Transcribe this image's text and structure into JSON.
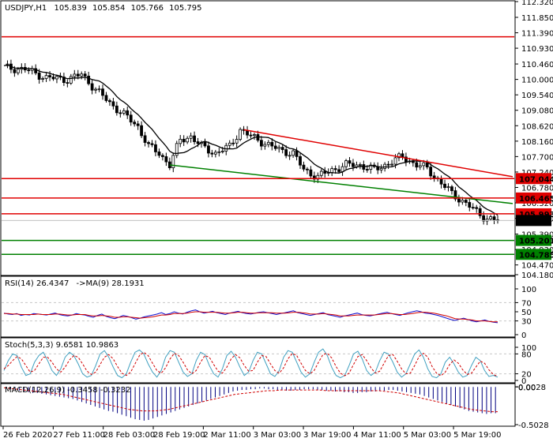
{
  "chart_data": [
    {
      "id": "price",
      "type": "candlestick",
      "title": "USDJPY,H1",
      "ohlc": [
        "105.839",
        "105.854",
        "105.766",
        "105.795"
      ],
      "ylim": [
        104.18,
        112.32
      ],
      "ytick_labels": [
        "112.320",
        "111.850",
        "111.390",
        "110.930",
        "110.460",
        "110.000",
        "109.540",
        "109.080",
        "108.620",
        "108.160",
        "107.700",
        "107.240",
        "106.780",
        "106.320",
        "105.860",
        "105.390",
        "104.930",
        "104.470",
        "104.180"
      ],
      "levels": [
        {
          "label": "111.270",
          "value": 111.27,
          "color": "#e00000",
          "tag": false
        },
        {
          "label": "107.044",
          "value": 107.044,
          "color": "#e00000",
          "tag": true
        },
        {
          "label": "106.465",
          "value": 106.465,
          "color": "#e00000",
          "tag": true
        },
        {
          "label": "105.993",
          "value": 105.993,
          "color": "#e00000",
          "tag": true
        },
        {
          "label": "105.201",
          "value": 105.201,
          "color": "#008000",
          "tag": true
        },
        {
          "label": "104.785",
          "value": 104.785,
          "color": "#008000",
          "tag": true
        }
      ],
      "current_price_label": "105.795",
      "current_price": 105.795,
      "x_labels": [
        "26 Feb 2020",
        "27 Feb 11:00",
        "28 Feb 03:00",
        "28 Feb 19:00",
        "2 Mar 11:00",
        "3 Mar 03:00",
        "3 Mar 19:00",
        "4 Mar 11:00",
        "5 Mar 03:00",
        "5 Mar 19:00"
      ],
      "bar_count": 140,
      "trendlines": [
        {
          "color": "#e00000",
          "from_bar": 68,
          "from_value": 108.5,
          "to_bar": 140,
          "to_value": 107.1
        },
        {
          "color": "#008000",
          "from_bar": 47,
          "from_value": 107.45,
          "to_bar": 140,
          "to_value": 106.3
        }
      ],
      "ma_color": "#000000",
      "series_anchor_points": [
        [
          0,
          110.35
        ],
        [
          6,
          110.3
        ],
        [
          12,
          110.05
        ],
        [
          18,
          110.0
        ],
        [
          22,
          110.15
        ],
        [
          26,
          109.7
        ],
        [
          30,
          109.3
        ],
        [
          34,
          108.95
        ],
        [
          38,
          108.6
        ],
        [
          41,
          108.0
        ],
        [
          44,
          107.8
        ],
        [
          47,
          107.45
        ],
        [
          50,
          108.2
        ],
        [
          53,
          108.3
        ],
        [
          56,
          108.0
        ],
        [
          60,
          107.8
        ],
        [
          64,
          108.0
        ],
        [
          67,
          108.5
        ],
        [
          70,
          108.3
        ],
        [
          74,
          108.1
        ],
        [
          78,
          107.9
        ],
        [
          82,
          107.8
        ],
        [
          85,
          107.3
        ],
        [
          89,
          107.1
        ],
        [
          93,
          107.3
        ],
        [
          97,
          107.45
        ],
        [
          101,
          107.45
        ],
        [
          105,
          107.3
        ],
        [
          109,
          107.5
        ],
        [
          113,
          107.7
        ],
        [
          117,
          107.45
        ],
        [
          120,
          107.35
        ],
        [
          123,
          107.0
        ],
        [
          127,
          106.6
        ],
        [
          131,
          106.3
        ],
        [
          134,
          106.05
        ],
        [
          137,
          105.85
        ],
        [
          140,
          105.795
        ]
      ]
    },
    {
      "id": "rsi",
      "type": "line",
      "title": "RSI(14) 26.4347",
      "ma_label": "->MA(9) 28.1931",
      "ylim": [
        0,
        100
      ],
      "ytick_labels": [
        "100",
        "70",
        "50",
        "30",
        "0"
      ],
      "levels": [
        70,
        30
      ],
      "series": [
        {
          "color": "#1010d0",
          "values": [
            47,
            45,
            44,
            46,
            42,
            44,
            43,
            46,
            45,
            44,
            43,
            45,
            47,
            44,
            42,
            41,
            43,
            46,
            44,
            43,
            40,
            38,
            42,
            45,
            40,
            37,
            35,
            38,
            42,
            40,
            37,
            34,
            36,
            39,
            41,
            43,
            45,
            48,
            44,
            46,
            50,
            47,
            45,
            49,
            52,
            54,
            50,
            47,
            49,
            51,
            48,
            46,
            44,
            47,
            49,
            51,
            48,
            46,
            45,
            47,
            49,
            50,
            48,
            46,
            44,
            46,
            48,
            50,
            52,
            48,
            46,
            44,
            42,
            44,
            46,
            48,
            44,
            42,
            40,
            38,
            41,
            43,
            45,
            47,
            44,
            42,
            41,
            43,
            45,
            47,
            49,
            46,
            44,
            42,
            45,
            48,
            50,
            52,
            50,
            47,
            46,
            44,
            42,
            39,
            36,
            33,
            31,
            34,
            36,
            33,
            30,
            28,
            30,
            32,
            29,
            27,
            26
          ]
        },
        {
          "color": "#d00000",
          "values": [
            46,
            46,
            45,
            45,
            44,
            44,
            44,
            44,
            45,
            44,
            44,
            44,
            45,
            45,
            44,
            43,
            43,
            44,
            44,
            44,
            42,
            41,
            41,
            42,
            41,
            40,
            38,
            38,
            39,
            39,
            38,
            37,
            36,
            37,
            38,
            39,
            41,
            43,
            43,
            44,
            46,
            46,
            46,
            47,
            49,
            50,
            50,
            49,
            49,
            49,
            49,
            48,
            47,
            47,
            48,
            49,
            49,
            48,
            47,
            47,
            48,
            48,
            48,
            48,
            47,
            47,
            47,
            48,
            49,
            49,
            48,
            47,
            45,
            45,
            45,
            46,
            45,
            44,
            43,
            41,
            41,
            41,
            42,
            43,
            43,
            43,
            43,
            43,
            44,
            45,
            46,
            46,
            45,
            44,
            44,
            45,
            46,
            48,
            49,
            49,
            48,
            47,
            45,
            43,
            41,
            38,
            35,
            34,
            34,
            33,
            32,
            30,
            30,
            30,
            29,
            28,
            28
          ]
        }
      ]
    },
    {
      "id": "stoch",
      "type": "line",
      "title": "Stoch(5,3,3) 9.6581 10.9863",
      "ylim": [
        0,
        100
      ],
      "ytick_labels": [
        "100",
        "80",
        "20",
        "0"
      ],
      "levels": [
        80,
        20
      ],
      "series": [
        {
          "color": "#40a0c0",
          "values": [
            30,
            60,
            80,
            75,
            40,
            15,
            20,
            55,
            75,
            85,
            60,
            30,
            15,
            35,
            70,
            85,
            75,
            50,
            20,
            10,
            15,
            45,
            80,
            90,
            70,
            40,
            15,
            8,
            20,
            55,
            85,
            92,
            80,
            50,
            25,
            10,
            30,
            70,
            90,
            85,
            55,
            25,
            12,
            20,
            60,
            85,
            78,
            45,
            20,
            10,
            35,
            75,
            88,
            70,
            40,
            15,
            25,
            60,
            85,
            80,
            50,
            20,
            12,
            30,
            70,
            90,
            85,
            55,
            25,
            10,
            20,
            55,
            85,
            95,
            75,
            40,
            15,
            8,
            15,
            45,
            80,
            88,
            65,
            30,
            15,
            25,
            60,
            85,
            80,
            55,
            25,
            10,
            20,
            50,
            80,
            92,
            70,
            35,
            12,
            8,
            20,
            55,
            70,
            50,
            25,
            10,
            15,
            45,
            70,
            60,
            30,
            12,
            15,
            10
          ]
        },
        {
          "color": "#d00000",
          "values": [
            35,
            45,
            60,
            72,
            65,
            45,
            25,
            30,
            50,
            70,
            70,
            55,
            35,
            25,
            40,
            62,
            75,
            70,
            50,
            28,
            18,
            25,
            48,
            70,
            78,
            65,
            42,
            22,
            15,
            25,
            50,
            75,
            85,
            75,
            52,
            30,
            22,
            38,
            65,
            82,
            75,
            55,
            32,
            20,
            30,
            55,
            75,
            70,
            48,
            28,
            22,
            40,
            65,
            78,
            68,
            45,
            28,
            30,
            55,
            75,
            72,
            50,
            30,
            22,
            38,
            65,
            82,
            75,
            52,
            30,
            20,
            30,
            55,
            78,
            82,
            68,
            42,
            22,
            14,
            22,
            48,
            72,
            78,
            60,
            38,
            22,
            28,
            52,
            75,
            78,
            58,
            35,
            20,
            22,
            45,
            72,
            82,
            70,
            42,
            22,
            14,
            25,
            48,
            62,
            52,
            32,
            18,
            22,
            40,
            58,
            52,
            32,
            18,
            12
          ]
        }
      ]
    },
    {
      "id": "macd",
      "type": "bar",
      "title": "MACD(12,26,9) -0.3458 -0.3232",
      "ylim": [
        -0.5028,
        0.0028
      ],
      "ytick_labels": [
        "0.0028",
        "0.00",
        "-0.5028"
      ],
      "bar_color": "#000080",
      "signal_color": "#d00000",
      "histogram": [
        -0.02,
        -0.03,
        -0.04,
        -0.05,
        -0.06,
        -0.07,
        -0.08,
        -0.08,
        -0.09,
        -0.1,
        -0.11,
        -0.12,
        -0.13,
        -0.14,
        -0.15,
        -0.16,
        -0.18,
        -0.2,
        -0.22,
        -0.24,
        -0.26,
        -0.28,
        -0.3,
        -0.32,
        -0.33,
        -0.35,
        -0.37,
        -0.39,
        -0.41,
        -0.43,
        -0.44,
        -0.45,
        -0.44,
        -0.42,
        -0.4,
        -0.38,
        -0.36,
        -0.34,
        -0.32,
        -0.3,
        -0.28,
        -0.26,
        -0.24,
        -0.22,
        -0.2,
        -0.18,
        -0.16,
        -0.14,
        -0.12,
        -0.1,
        -0.08,
        -0.06,
        -0.05,
        -0.04,
        -0.04,
        -0.03,
        -0.03,
        -0.02,
        -0.02,
        -0.03,
        -0.03,
        -0.04,
        -0.04,
        -0.05,
        -0.05,
        -0.04,
        -0.04,
        -0.03,
        -0.03,
        -0.03,
        -0.04,
        -0.04,
        -0.05,
        -0.05,
        -0.06,
        -0.06,
        -0.07,
        -0.07,
        -0.08,
        -0.08,
        -0.07,
        -0.07,
        -0.06,
        -0.06,
        -0.05,
        -0.05,
        -0.04,
        -0.04,
        -0.05,
        -0.06,
        -0.07,
        -0.08,
        -0.09,
        -0.1,
        -0.12,
        -0.14,
        -0.16,
        -0.18,
        -0.2,
        -0.22,
        -0.24,
        -0.26,
        -0.28,
        -0.3,
        -0.32,
        -0.33,
        -0.34,
        -0.35,
        -0.36,
        -0.35,
        -0.35
      ],
      "signal": [
        -0.01,
        -0.02,
        -0.03,
        -0.04,
        -0.05,
        -0.06,
        -0.07,
        -0.08,
        -0.09,
        -0.1,
        -0.12,
        -0.14,
        -0.16,
        -0.18,
        -0.2,
        -0.22,
        -0.24,
        -0.26,
        -0.28,
        -0.3,
        -0.31,
        -0.32,
        -0.32,
        -0.32,
        -0.31,
        -0.3,
        -0.28,
        -0.26,
        -0.24,
        -0.22,
        -0.2,
        -0.18,
        -0.16,
        -0.14,
        -0.12,
        -0.1,
        -0.09,
        -0.08,
        -0.07,
        -0.06,
        -0.05,
        -0.05,
        -0.04,
        -0.04,
        -0.04,
        -0.04,
        -0.04,
        -0.04,
        -0.04,
        -0.05,
        -0.05,
        -0.05,
        -0.05,
        -0.05,
        -0.05,
        -0.05,
        -0.05,
        -0.05,
        -0.06,
        -0.07,
        -0.08,
        -0.1,
        -0.12,
        -0.14,
        -0.16,
        -0.18,
        -0.2,
        -0.22,
        -0.24,
        -0.26,
        -0.28,
        -0.3,
        -0.31,
        -0.32,
        -0.33,
        -0.33
      ]
    }
  ],
  "colors": {
    "grid": "#c8c8c8",
    "axis": "#000000",
    "bull": "#ffffff",
    "bear": "#000000"
  }
}
